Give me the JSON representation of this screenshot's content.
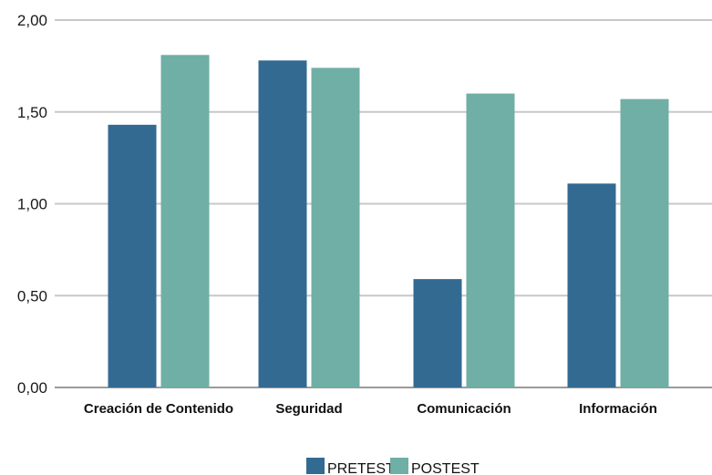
{
  "chart_data": {
    "type": "bar",
    "categories": [
      "Creación de Contenido",
      "Seguridad",
      "Comunicación",
      "Información"
    ],
    "series": [
      {
        "name": "PRETEST",
        "values": [
          1.43,
          1.78,
          0.59,
          1.11
        ],
        "color": "#336a92"
      },
      {
        "name": "POSTEST",
        "values": [
          1.81,
          1.74,
          1.6,
          1.57
        ],
        "color": "#6fafa6"
      }
    ],
    "yticks": [
      "0,00",
      "0,50",
      "1,00",
      "1,50",
      "2,00"
    ],
    "ytick_values": [
      0,
      0.5,
      1.0,
      1.5,
      2.0
    ],
    "ylim": [
      0,
      2.0
    ],
    "title": "",
    "xlabel": "",
    "ylabel": "",
    "grid": true,
    "legend_position": "bottom-center"
  }
}
